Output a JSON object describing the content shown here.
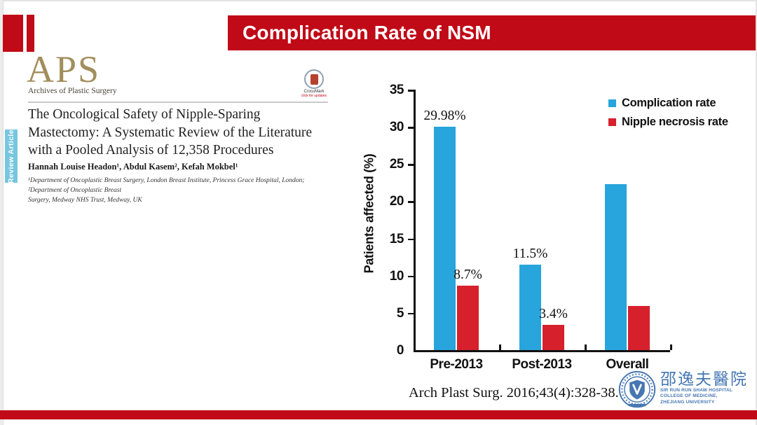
{
  "slide": {
    "header": {
      "title": "Complication Rate of NSM"
    },
    "footer": {
      "citation": "Arch Plast Surg. 2016;43(4):328-38."
    }
  },
  "paper": {
    "journal": {
      "abbr": "APS",
      "name": "Archives of Plastic Surgery"
    },
    "crossmark": {
      "label": "CrossMark",
      "sub": "click for updates"
    },
    "article_type": "Review Article",
    "title": "The Oncological Safety of Nipple-Sparing\nMastectomy: A Systematic Review of the Literature\nwith a Pooled Analysis of 12,358 Procedures",
    "authors": "Hannah Louise Headon¹, Abdul Kasem², Kefah Mokbel¹",
    "affiliations": "¹Department of Oncoplastic Breast Surgery, London Breast Institute, Princess Grace Hospital, London; ²Department of Oncoplastic Breast\nSurgery, Medway NHS Trust, Medway, UK"
  },
  "hospital": {
    "name_zh": "邵逸夫醫院",
    "line1": "SIR RUN RUN SHAW HOSPITAL",
    "line2": "COLLEGE OF MEDICINE,",
    "line3": "ZHEJIANG UNIVERSITY"
  },
  "colors": {
    "header_red": "#c00a17",
    "bar_blue": "#27a5dc",
    "bar_red": "#d6202c",
    "tab_blue": "#76c6de",
    "aps_gold": "#a28e5c",
    "hospital_blue": "#4677b2"
  },
  "chart_data": {
    "type": "bar",
    "categories": [
      "Pre-2013",
      "Post-2013",
      "Overall"
    ],
    "series": [
      {
        "name": "Complication rate",
        "color": "#27a5dc",
        "values": [
          29.98,
          11.5,
          22.3
        ],
        "labels": [
          "29.98%",
          "11.5%",
          ""
        ]
      },
      {
        "name": "Nipple necrosis rate",
        "color": "#d6202c",
        "values": [
          8.7,
          3.4,
          5.9
        ],
        "labels": [
          "8.7%",
          "3.4%",
          ""
        ]
      }
    ],
    "title": "",
    "xlabel": "",
    "ylabel": "Patients affected (%)",
    "ylim": [
      0,
      35
    ],
    "ytick_step": 5,
    "grid": false,
    "legend_position": "top-right"
  }
}
